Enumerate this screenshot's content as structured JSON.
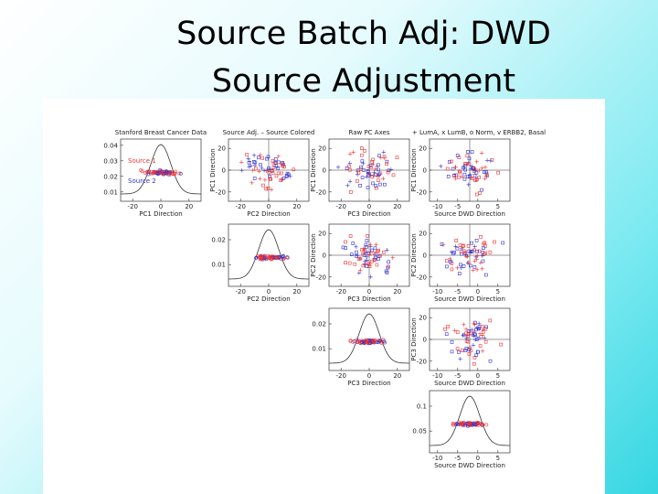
{
  "slide": {
    "title_lines": [
      "Source Batch Adj:  DWD",
      "Source Adjustment"
    ],
    "panels": [
      {
        "kind": "density",
        "title": "Stanford Breast Cancer Data",
        "xlabel": "PC1 Direction",
        "xticks": [
          "-20",
          "0",
          "20"
        ],
        "yticks": [
          "0.04",
          "0.03",
          "0.02",
          "0.01"
        ],
        "legend": [
          "Source 1",
          "Source 2"
        ]
      },
      {
        "kind": "scatter",
        "title": "Source Adj. – Source Colored",
        "xlabel": "PC2 Direction",
        "ylabel": "PC1 Direction",
        "xticks": [
          "-20",
          "0",
          "20"
        ],
        "yticks": [
          "20",
          "0",
          "-20"
        ]
      },
      {
        "kind": "scatter",
        "title": "Raw PC Axes",
        "xlabel": "PC3 Direction",
        "ylabel": "PC1 Direction",
        "xticks": [
          "-20",
          "0",
          "20"
        ],
        "yticks": [
          "20",
          "0",
          "-20"
        ]
      },
      {
        "kind": "scatter",
        "title": "+ LumA, x LumB, o Norm, v ERBB2, Basal",
        "xlabel": "Source DWD Direction",
        "ylabel": "PC1 Direction",
        "xticks": [
          "-10",
          "-5",
          "0",
          "5"
        ],
        "yticks": [
          "20",
          "0",
          "-20"
        ]
      },
      {
        "kind": "density",
        "xlabel": "PC2 Direction",
        "xticks": [
          "-20",
          "0",
          "20"
        ],
        "yticks": [
          "0.02",
          "0.01"
        ]
      },
      {
        "kind": "scatter",
        "xlabel": "PC3 Direction",
        "ylabel": "PC2 Direction",
        "xticks": [
          "-20",
          "0",
          "20"
        ],
        "yticks": [
          "20",
          "0",
          "-20"
        ]
      },
      {
        "kind": "scatter",
        "xlabel": "Source DWD Direction",
        "ylabel": "PC2 Direction",
        "xticks": [
          "-10",
          "-5",
          "0",
          "5"
        ],
        "yticks": [
          "20",
          "0",
          "-20"
        ]
      },
      {
        "kind": "density",
        "xlabel": "PC3 Direction",
        "xticks": [
          "-20",
          "0",
          "20"
        ],
        "yticks": [
          "0.02",
          "0.01"
        ]
      },
      {
        "kind": "scatter",
        "xlabel": "Source DWD Direction",
        "ylabel": "PC3 Direction",
        "xticks": [
          "-10",
          "-5",
          "0",
          "5"
        ],
        "yticks": [
          "20",
          "0",
          "-20"
        ]
      },
      {
        "kind": "density",
        "xlabel": "Source DWD Direction",
        "xticks": [
          "-10",
          "-5",
          "0",
          "5"
        ],
        "yticks": [
          "0.1",
          "0.05"
        ]
      }
    ]
  }
}
